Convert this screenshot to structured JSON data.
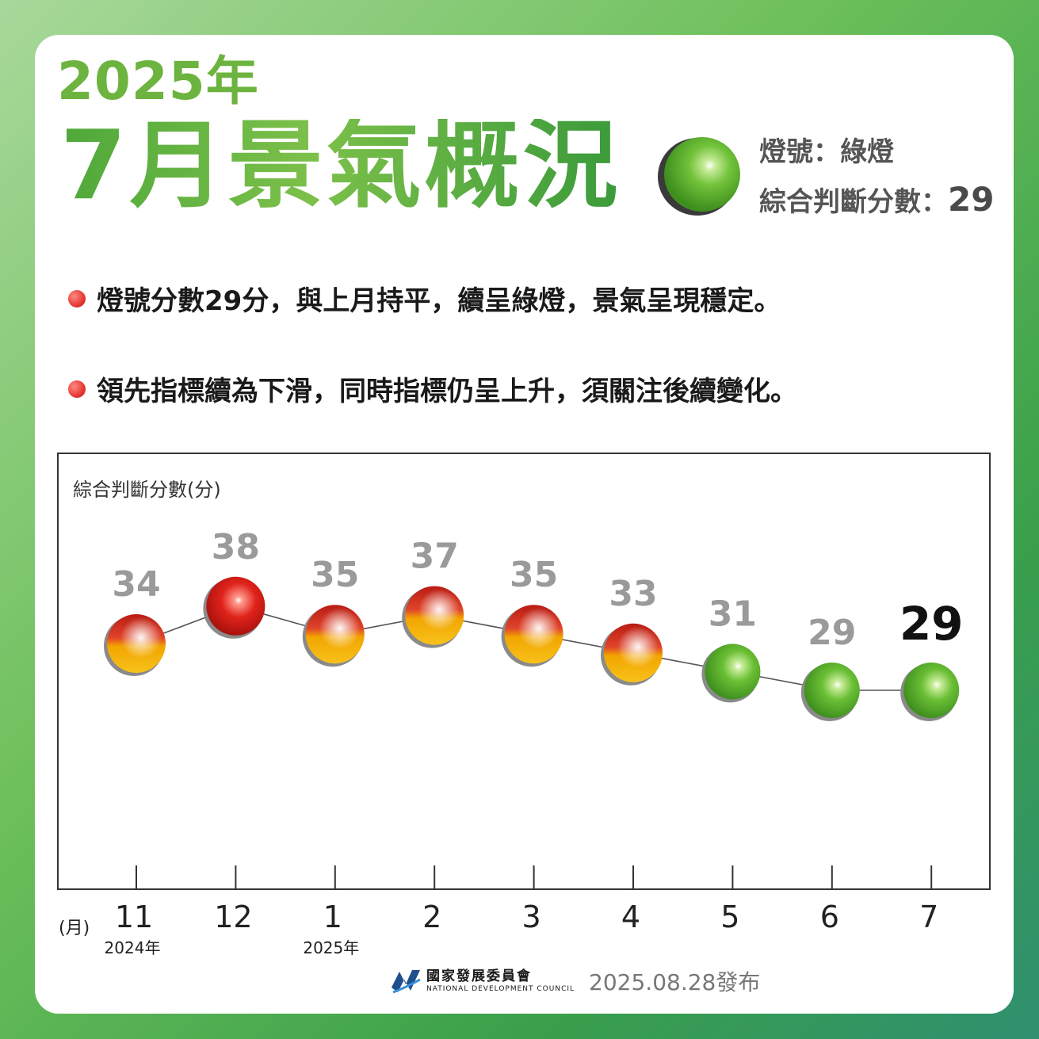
{
  "header": {
    "year_title": "2025年",
    "main_title": "7月景氣概況",
    "signal_light_label": "燈號：綠燈",
    "score_label": "綜合判斷分數：",
    "score_value": "29"
  },
  "bullets": [
    "燈號分數29分，與上月持平，續呈綠燈，景氣呈現穩定。",
    "領先指標續為下滑，同時指標仍呈上升，須關注後續變化。"
  ],
  "chart_data": {
    "type": "line",
    "ylabel": "綜合判斷分數(分)",
    "xlabel": "(月)",
    "categories": [
      "11",
      "12",
      "1",
      "2",
      "3",
      "4",
      "5",
      "6",
      "7"
    ],
    "year_labels": [
      "2024年",
      "",
      "2025年",
      "",
      "",
      "",
      "",
      "",
      ""
    ],
    "values": [
      34,
      38,
      35,
      37,
      35,
      33,
      31,
      29,
      29
    ],
    "signals": [
      "yellow-red",
      "red",
      "yellow-red",
      "yellow-red",
      "yellow-red",
      "yellow-red",
      "green",
      "green",
      "green"
    ],
    "highlight_index": 8,
    "ylim": [
      22,
      41
    ],
    "colors": {
      "red": "#e0231b",
      "yellow_red_top": "#c8251b",
      "yellow_red_bottom": "#f5b800",
      "green": "#6abf34",
      "label": "#9a9a9a",
      "highlight_label": "#111111"
    }
  },
  "footer": {
    "org_name_zh": "國家發展委員會",
    "org_name_en": "NATIONAL DEVELOPMENT COUNCIL",
    "release": "2025.08.28發布"
  }
}
